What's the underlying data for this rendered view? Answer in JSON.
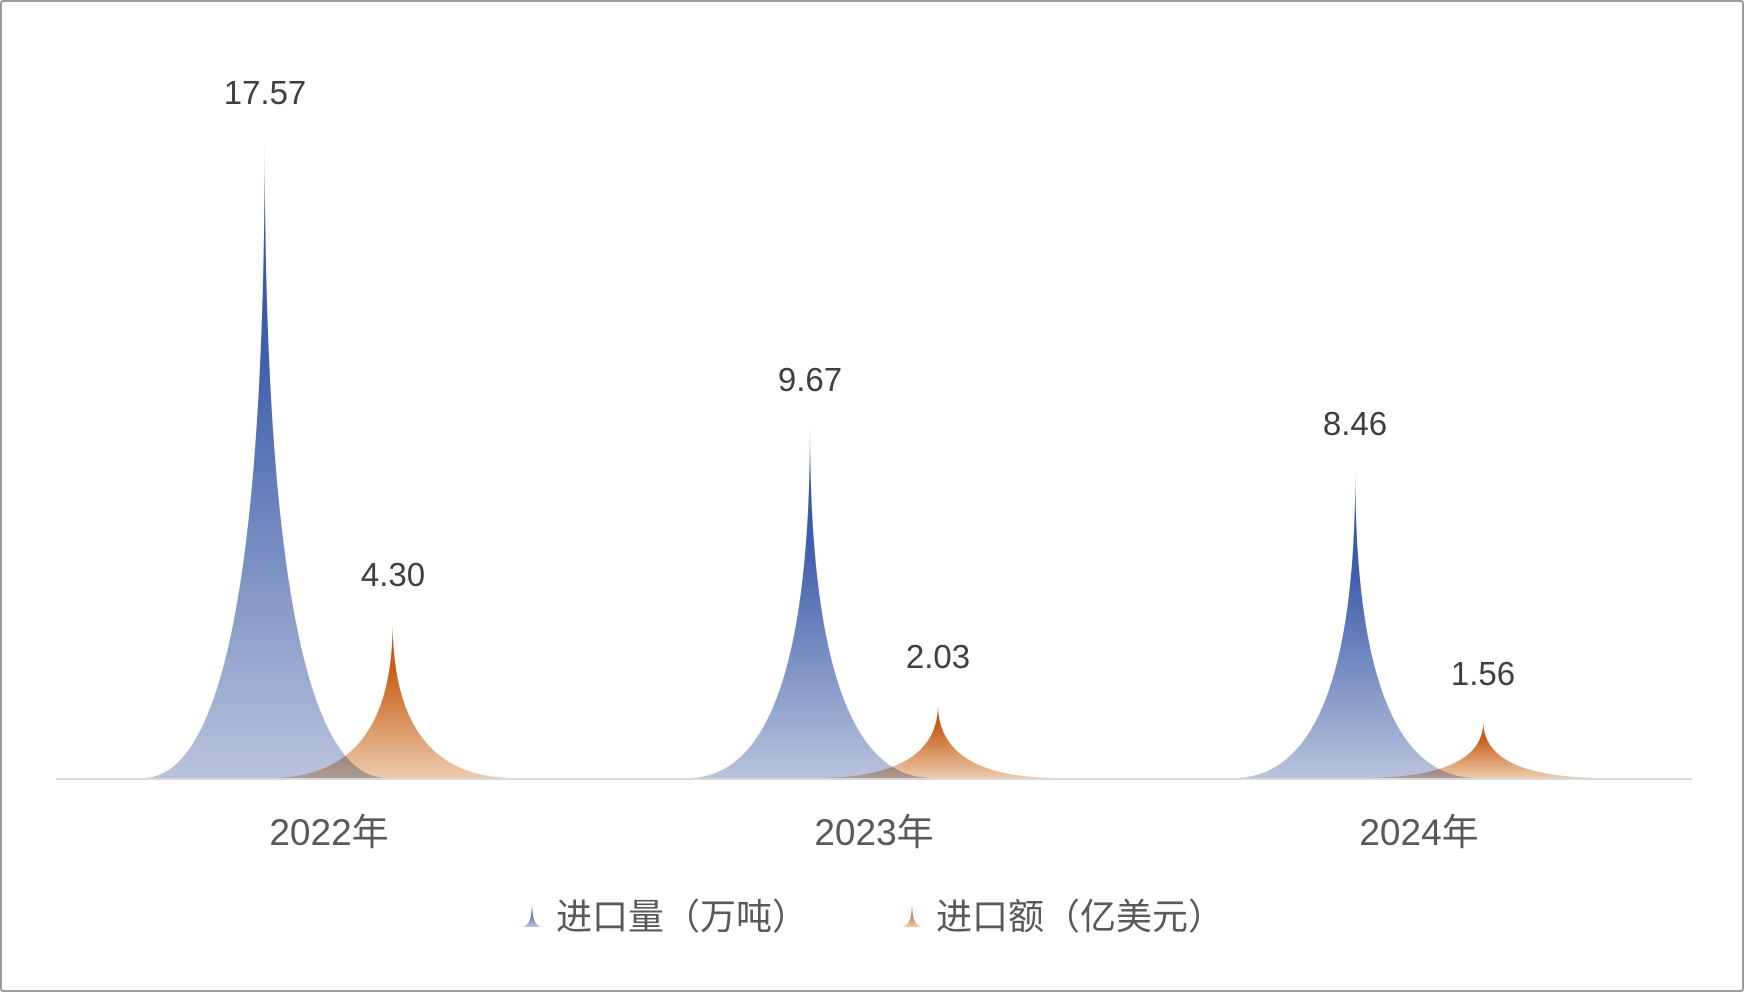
{
  "window": {
    "background_color": "#FFFFFF",
    "border_color": "#9B9B9B"
  },
  "chart_data": {
    "type": "bar",
    "variant": "triangle-spike-bars",
    "title": "",
    "xlabel": "",
    "ylabel": "",
    "grid": false,
    "legend_position": "bottom",
    "ylim": [
      0,
      17.57
    ],
    "categories": [
      "2022年",
      "2023年",
      "2024年"
    ],
    "series": [
      {
        "id": "import-volume",
        "name": "进口量（万吨）",
        "values": [
          17.57,
          9.67,
          8.46
        ],
        "labels": [
          "17.57",
          "9.67",
          "8.46"
        ],
        "color_top": "#2A51A8",
        "color_mid": "#4160AC",
        "color_bottom": "#B9C3DD"
      },
      {
        "id": "import-value",
        "name": "进口额（亿美元）",
        "values": [
          4.3,
          2.03,
          1.56
        ],
        "labels": [
          "4.30",
          "2.03",
          "1.56"
        ],
        "color_top": "#BE520C",
        "color_mid": "#C75F17",
        "color_bottom": "#EDCAAC"
      }
    ],
    "style": {
      "axis_color": "#D9D9D9",
      "data_label_color": "#3F3F3F",
      "category_label_color": "#595959",
      "legend_text_color": "#595959"
    }
  }
}
